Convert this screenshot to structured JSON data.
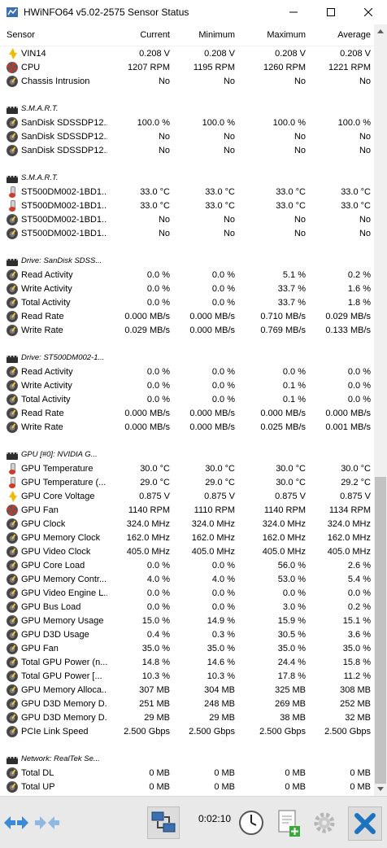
{
  "window": {
    "title": "HWiNFO64 v5.02-2575 Sensor Status"
  },
  "columns": {
    "sensor": "Sensor",
    "current": "Current",
    "minimum": "Minimum",
    "maximum": "Maximum",
    "average": "Average"
  },
  "rows": [
    {
      "kind": "data",
      "icon": "volt",
      "label": "VIN14",
      "cur": "0.208 V",
      "min": "0.208 V",
      "max": "0.208 V",
      "avg": "0.208 V"
    },
    {
      "kind": "data",
      "icon": "fan",
      "label": "CPU",
      "cur": "1207 RPM",
      "min": "1195 RPM",
      "max": "1260 RPM",
      "avg": "1221 RPM"
    },
    {
      "kind": "data",
      "icon": "gauge",
      "label": "Chassis Intrusion",
      "cur": "No",
      "min": "No",
      "max": "No",
      "avg": "No"
    },
    {
      "kind": "spacer"
    },
    {
      "kind": "group",
      "label": "S.M.A.R.T."
    },
    {
      "kind": "data",
      "icon": "gauge",
      "label": "SanDisk SDSSDP12...",
      "cur": "100.0 %",
      "min": "100.0 %",
      "max": "100.0 %",
      "avg": "100.0 %"
    },
    {
      "kind": "data",
      "icon": "gauge",
      "label": "SanDisk SDSSDP12...",
      "cur": "No",
      "min": "No",
      "max": "No",
      "avg": "No"
    },
    {
      "kind": "data",
      "icon": "gauge",
      "label": "SanDisk SDSSDP12...",
      "cur": "No",
      "min": "No",
      "max": "No",
      "avg": "No"
    },
    {
      "kind": "spacer"
    },
    {
      "kind": "group",
      "label": "S.M.A.R.T."
    },
    {
      "kind": "data",
      "icon": "temp",
      "label": "ST500DM002-1BD1...",
      "cur": "33.0 °C",
      "min": "33.0 °C",
      "max": "33.0 °C",
      "avg": "33.0 °C"
    },
    {
      "kind": "data",
      "icon": "temp",
      "label": "ST500DM002-1BD1...",
      "cur": "33.0 °C",
      "min": "33.0 °C",
      "max": "33.0 °C",
      "avg": "33.0 °C"
    },
    {
      "kind": "data",
      "icon": "gauge",
      "label": "ST500DM002-1BD1...",
      "cur": "No",
      "min": "No",
      "max": "No",
      "avg": "No"
    },
    {
      "kind": "data",
      "icon": "gauge",
      "label": "ST500DM002-1BD1...",
      "cur": "No",
      "min": "No",
      "max": "No",
      "avg": "No"
    },
    {
      "kind": "spacer"
    },
    {
      "kind": "group",
      "label": "Drive: SanDisk SDSS..."
    },
    {
      "kind": "data",
      "icon": "gauge",
      "label": "Read Activity",
      "cur": "0.0 %",
      "min": "0.0 %",
      "max": "5.1 %",
      "avg": "0.2 %"
    },
    {
      "kind": "data",
      "icon": "gauge",
      "label": "Write Activity",
      "cur": "0.0 %",
      "min": "0.0 %",
      "max": "33.7 %",
      "avg": "1.6 %"
    },
    {
      "kind": "data",
      "icon": "gauge",
      "label": "Total Activity",
      "cur": "0.0 %",
      "min": "0.0 %",
      "max": "33.7 %",
      "avg": "1.8 %"
    },
    {
      "kind": "data",
      "icon": "gauge",
      "label": "Read Rate",
      "cur": "0.000 MB/s",
      "min": "0.000 MB/s",
      "max": "0.710 MB/s",
      "avg": "0.029 MB/s"
    },
    {
      "kind": "data",
      "icon": "gauge",
      "label": "Write Rate",
      "cur": "0.029 MB/s",
      "min": "0.000 MB/s",
      "max": "0.769 MB/s",
      "avg": "0.133 MB/s"
    },
    {
      "kind": "spacer"
    },
    {
      "kind": "group",
      "label": "Drive: ST500DM002-1..."
    },
    {
      "kind": "data",
      "icon": "gauge",
      "label": "Read Activity",
      "cur": "0.0 %",
      "min": "0.0 %",
      "max": "0.0 %",
      "avg": "0.0 %"
    },
    {
      "kind": "data",
      "icon": "gauge",
      "label": "Write Activity",
      "cur": "0.0 %",
      "min": "0.0 %",
      "max": "0.1 %",
      "avg": "0.0 %"
    },
    {
      "kind": "data",
      "icon": "gauge",
      "label": "Total Activity",
      "cur": "0.0 %",
      "min": "0.0 %",
      "max": "0.1 %",
      "avg": "0.0 %"
    },
    {
      "kind": "data",
      "icon": "gauge",
      "label": "Read Rate",
      "cur": "0.000 MB/s",
      "min": "0.000 MB/s",
      "max": "0.000 MB/s",
      "avg": "0.000 MB/s"
    },
    {
      "kind": "data",
      "icon": "gauge",
      "label": "Write Rate",
      "cur": "0.000 MB/s",
      "min": "0.000 MB/s",
      "max": "0.025 MB/s",
      "avg": "0.001 MB/s"
    },
    {
      "kind": "spacer"
    },
    {
      "kind": "group",
      "label": "GPU [#0]: NVIDIA G..."
    },
    {
      "kind": "data",
      "icon": "temp",
      "label": "GPU Temperature",
      "cur": "30.0 °C",
      "min": "30.0 °C",
      "max": "30.0 °C",
      "avg": "30.0 °C"
    },
    {
      "kind": "data",
      "icon": "temp",
      "label": "GPU Temperature (...",
      "cur": "29.0 °C",
      "min": "29.0 °C",
      "max": "30.0 °C",
      "avg": "29.2 °C"
    },
    {
      "kind": "data",
      "icon": "volt",
      "label": "GPU Core Voltage",
      "cur": "0.875 V",
      "min": "0.875 V",
      "max": "0.875 V",
      "avg": "0.875 V"
    },
    {
      "kind": "data",
      "icon": "fan",
      "label": "GPU Fan",
      "cur": "1140 RPM",
      "min": "1110 RPM",
      "max": "1140 RPM",
      "avg": "1134 RPM"
    },
    {
      "kind": "data",
      "icon": "gauge",
      "label": "GPU Clock",
      "cur": "324.0 MHz",
      "min": "324.0 MHz",
      "max": "324.0 MHz",
      "avg": "324.0 MHz"
    },
    {
      "kind": "data",
      "icon": "gauge",
      "label": "GPU Memory Clock",
      "cur": "162.0 MHz",
      "min": "162.0 MHz",
      "max": "162.0 MHz",
      "avg": "162.0 MHz"
    },
    {
      "kind": "data",
      "icon": "gauge",
      "label": "GPU Video Clock",
      "cur": "405.0 MHz",
      "min": "405.0 MHz",
      "max": "405.0 MHz",
      "avg": "405.0 MHz"
    },
    {
      "kind": "data",
      "icon": "gauge",
      "label": "GPU Core Load",
      "cur": "0.0 %",
      "min": "0.0 %",
      "max": "56.0 %",
      "avg": "2.6 %"
    },
    {
      "kind": "data",
      "icon": "gauge",
      "label": "GPU Memory Contr...",
      "cur": "4.0 %",
      "min": "4.0 %",
      "max": "53.0 %",
      "avg": "5.4 %"
    },
    {
      "kind": "data",
      "icon": "gauge",
      "label": "GPU Video Engine L...",
      "cur": "0.0 %",
      "min": "0.0 %",
      "max": "0.0 %",
      "avg": "0.0 %"
    },
    {
      "kind": "data",
      "icon": "gauge",
      "label": "GPU Bus Load",
      "cur": "0.0 %",
      "min": "0.0 %",
      "max": "3.0 %",
      "avg": "0.2 %"
    },
    {
      "kind": "data",
      "icon": "gauge",
      "label": "GPU Memory Usage",
      "cur": "15.0 %",
      "min": "14.9 %",
      "max": "15.9 %",
      "avg": "15.1 %"
    },
    {
      "kind": "data",
      "icon": "gauge",
      "label": "GPU D3D Usage",
      "cur": "0.4 %",
      "min": "0.3 %",
      "max": "30.5 %",
      "avg": "3.6 %"
    },
    {
      "kind": "data",
      "icon": "gauge",
      "label": "GPU Fan",
      "cur": "35.0 %",
      "min": "35.0 %",
      "max": "35.0 %",
      "avg": "35.0 %"
    },
    {
      "kind": "data",
      "icon": "gauge",
      "label": "Total GPU Power (n...",
      "cur": "14.8 %",
      "min": "14.6 %",
      "max": "24.4 %",
      "avg": "15.8 %"
    },
    {
      "kind": "data",
      "icon": "gauge",
      "label": "Total GPU Power [...",
      "cur": "10.3 %",
      "min": "10.3 %",
      "max": "17.8 %",
      "avg": "11.2 %"
    },
    {
      "kind": "data",
      "icon": "gauge",
      "label": "GPU Memory Alloca...",
      "cur": "307 MB",
      "min": "304 MB",
      "max": "325 MB",
      "avg": "308 MB"
    },
    {
      "kind": "data",
      "icon": "gauge",
      "label": "GPU D3D Memory D...",
      "cur": "251 MB",
      "min": "248 MB",
      "max": "269 MB",
      "avg": "252 MB"
    },
    {
      "kind": "data",
      "icon": "gauge",
      "label": "GPU D3D Memory D...",
      "cur": "29 MB",
      "min": "29 MB",
      "max": "38 MB",
      "avg": "32 MB"
    },
    {
      "kind": "data",
      "icon": "gauge",
      "label": "PCIe Link Speed",
      "cur": "2.500 Gbps",
      "min": "2.500 Gbps",
      "max": "2.500 Gbps",
      "avg": "2.500 Gbps"
    },
    {
      "kind": "spacer"
    },
    {
      "kind": "group",
      "label": "Network: RealTek Se..."
    },
    {
      "kind": "data",
      "icon": "gauge",
      "label": "Total DL",
      "cur": "0 MB",
      "min": "0 MB",
      "max": "0 MB",
      "avg": "0 MB"
    },
    {
      "kind": "data",
      "icon": "gauge",
      "label": "Total UP",
      "cur": "0 MB",
      "min": "0 MB",
      "max": "0 MB",
      "avg": "0 MB"
    }
  ],
  "toolbar": {
    "elapsed": "0:02:10"
  },
  "colors": {
    "accent": "#1e73be",
    "toolbar_bg": "#e9e9e9"
  }
}
